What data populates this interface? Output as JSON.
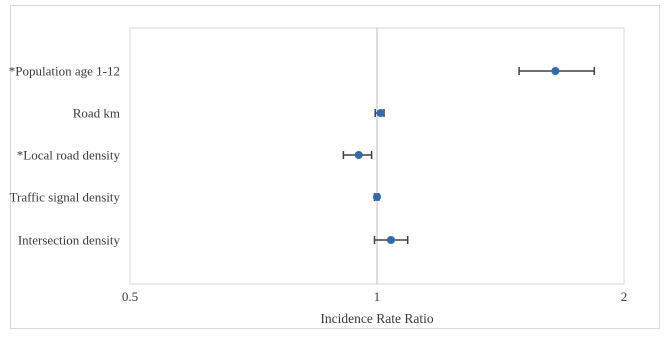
{
  "chart_data": {
    "type": "scatter",
    "subtype": "forest-plot",
    "xscale": "log",
    "xlabel": "Incidence Rate Ratio",
    "xlim": [
      0.5,
      2
    ],
    "xticks": [
      "0.5",
      "1",
      "2"
    ],
    "reference_line": 1,
    "grid": false,
    "marker_color": "#2e6bb0",
    "errorbar_color": "#404040",
    "categories": [
      "*Population age 1-12",
      "Road km",
      "*Local road density",
      "Traffic signal density",
      "Intersection density"
    ],
    "estimates": [
      1.65,
      1.01,
      0.95,
      1.0,
      1.04
    ],
    "ci_lower": [
      1.49,
      0.995,
      0.91,
      0.993,
      0.993
    ],
    "ci_upper": [
      1.84,
      1.02,
      0.985,
      1.005,
      1.09
    ]
  }
}
